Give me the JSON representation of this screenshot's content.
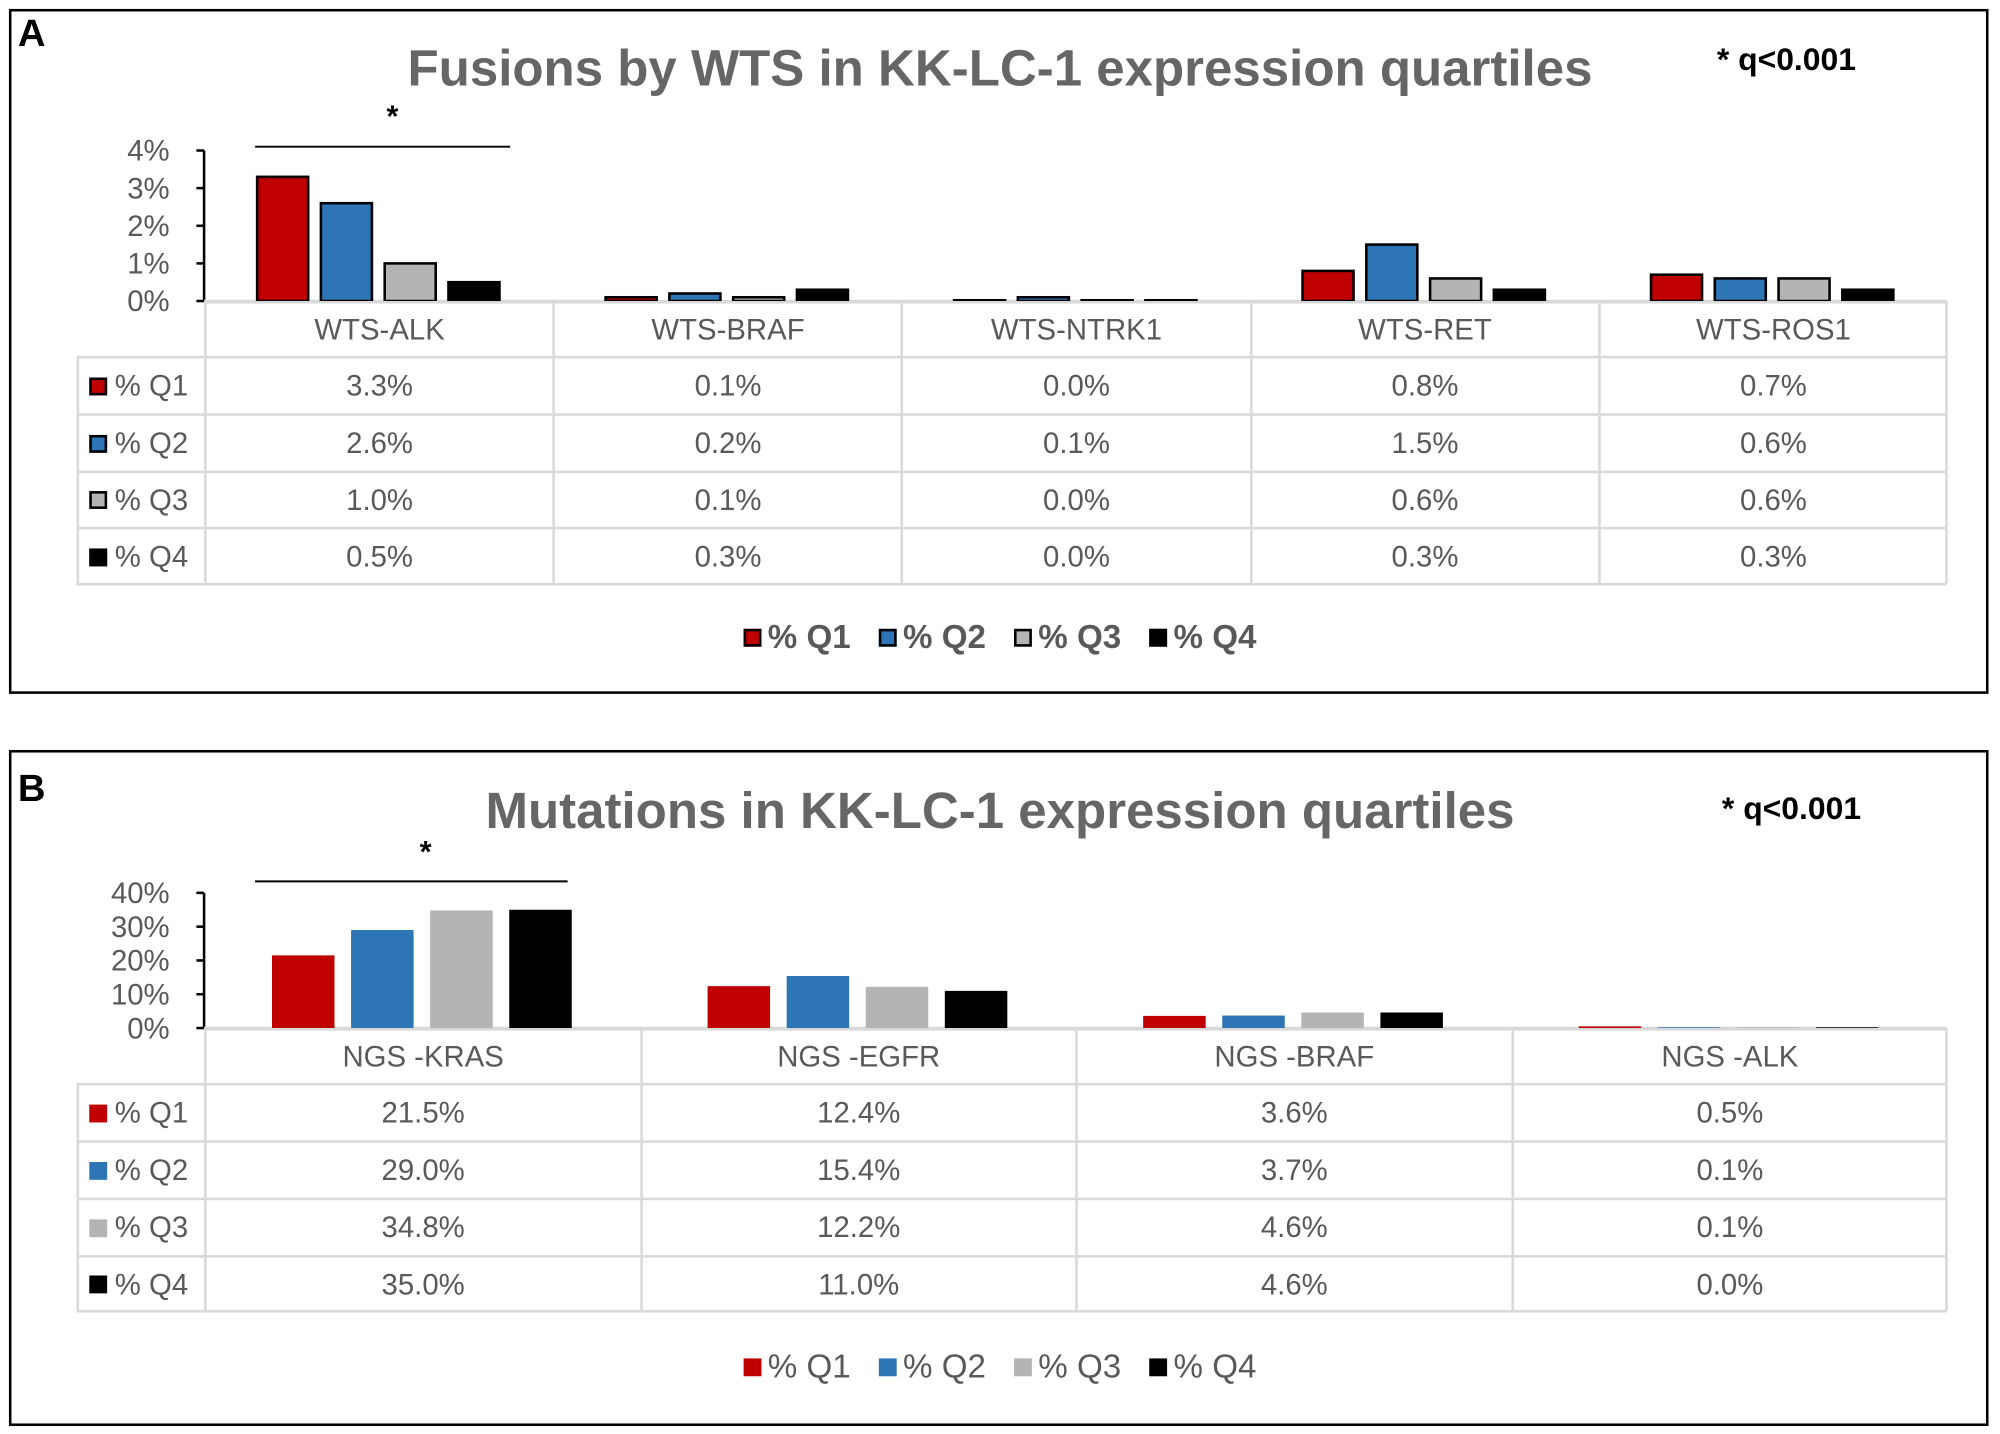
{
  "colors": {
    "Q1": "#C00000",
    "Q2": "#2E75B6",
    "Q3": "#B4B4B4",
    "Q4": "#000000"
  },
  "chart_data": [
    {
      "panel_label": "A",
      "type": "bar",
      "title": "Fusions by WTS in KK-LC-1 expression quartiles",
      "annotation": "* q<0.001",
      "significance_marker": "*",
      "categories": [
        "WTS-ALK",
        "WTS-BRAF",
        "WTS-NTRK1",
        "WTS-RET",
        "WTS-ROS1"
      ],
      "series": [
        {
          "name": "% Q1",
          "values": [
            3.3,
            0.1,
            0.0,
            0.8,
            0.7
          ],
          "labels": [
            "3.3%",
            "0.1%",
            "0.0%",
            "0.8%",
            "0.7%"
          ]
        },
        {
          "name": "% Q2",
          "values": [
            2.6,
            0.2,
            0.1,
            1.5,
            0.6
          ],
          "labels": [
            "2.6%",
            "0.2%",
            "0.1%",
            "1.5%",
            "0.6%"
          ]
        },
        {
          "name": "% Q3",
          "values": [
            1.0,
            0.1,
            0.0,
            0.6,
            0.6
          ],
          "labels": [
            "1.0%",
            "0.1%",
            "0.0%",
            "0.6%",
            "0.6%"
          ]
        },
        {
          "name": "% Q4",
          "values": [
            0.5,
            0.3,
            0.0,
            0.3,
            0.3
          ],
          "labels": [
            "0.5%",
            "0.3%",
            "0.0%",
            "0.3%",
            "0.3%"
          ]
        }
      ],
      "ylim": [
        0,
        4
      ],
      "yticks": [
        "0%",
        "1%",
        "2%",
        "3%",
        "4%"
      ],
      "grid": false,
      "legend": "bottom",
      "data_table": true
    },
    {
      "panel_label": "B",
      "type": "bar",
      "title": "Mutations in KK-LC-1 expression quartiles",
      "annotation": "* q<0.001",
      "significance_marker": "*",
      "categories": [
        "NGS -KRAS",
        "NGS -EGFR",
        "NGS -BRAF",
        "NGS -ALK"
      ],
      "series": [
        {
          "name": "% Q1",
          "values": [
            21.5,
            12.4,
            3.6,
            0.5
          ],
          "labels": [
            "21.5%",
            "12.4%",
            "3.6%",
            "0.5%"
          ]
        },
        {
          "name": "% Q2",
          "values": [
            29.0,
            15.4,
            3.7,
            0.1
          ],
          "labels": [
            "29.0%",
            "15.4%",
            "3.7%",
            "0.1%"
          ]
        },
        {
          "name": "% Q3",
          "values": [
            34.8,
            12.2,
            4.6,
            0.1
          ],
          "labels": [
            "34.8%",
            "12.2%",
            "4.6%",
            "0.1%"
          ]
        },
        {
          "name": "% Q4",
          "values": [
            35.0,
            11.0,
            4.6,
            0.0
          ],
          "labels": [
            "35.0%",
            "11.0%",
            "4.6%",
            "0.0%"
          ]
        }
      ],
      "ylim": [
        0,
        40
      ],
      "yticks": [
        "0%",
        "10%",
        "20%",
        "30%",
        "40%"
      ],
      "grid": false,
      "legend": "bottom",
      "data_table": true
    }
  ]
}
